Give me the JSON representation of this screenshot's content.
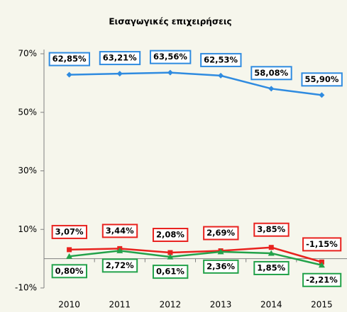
{
  "chart_data": {
    "type": "line",
    "title": "Εισαγωγικές επιχειρήσεις",
    "categories": [
      "2010",
      "2011",
      "2012",
      "2013",
      "2014",
      "2015"
    ],
    "ylim": [
      -10,
      70
    ],
    "yticks": [
      {
        "value": -10,
        "label": "-10%"
      },
      {
        "value": 10,
        "label": "10%"
      },
      {
        "value": 30,
        "label": "30%"
      },
      {
        "value": 50,
        "label": "50%"
      },
      {
        "value": 70,
        "label": "70%"
      }
    ],
    "series": [
      {
        "color": "#2f8be0",
        "marker": "diamond",
        "values": [
          62.85,
          63.21,
          63.56,
          62.53,
          58.08,
          55.9
        ],
        "value_labels": [
          "62,85%",
          "63,21%",
          "63,56%",
          "62,53%",
          "58,08%",
          "55,90%"
        ]
      },
      {
        "color": "#e8221e",
        "marker": "square",
        "values": [
          3.07,
          3.44,
          2.08,
          2.69,
          3.85,
          -1.15
        ],
        "value_labels": [
          "3,07%",
          "3,44%",
          "2,08%",
          "2,69%",
          "3,85%",
          "-1,15%"
        ]
      },
      {
        "color": "#23a24a",
        "marker": "triangle",
        "values": [
          0.8,
          2.72,
          0.61,
          2.36,
          1.85,
          -2.21
        ],
        "value_labels": [
          "0,80%",
          "2,72%",
          "0,61%",
          "2,36%",
          "1,85%",
          "-2,21%"
        ]
      }
    ]
  }
}
